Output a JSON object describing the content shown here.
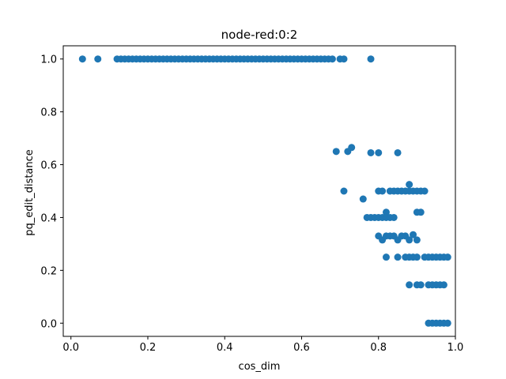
{
  "chart_data": {
    "type": "scatter",
    "title": "node-red:0:2",
    "xlabel": "cos_dim",
    "ylabel": "pq_edit_distance",
    "xlim": [
      -0.02,
      1.0
    ],
    "ylim": [
      -0.05,
      1.05
    ],
    "xticks": [
      0.0,
      0.2,
      0.4,
      0.6,
      0.8,
      1.0
    ],
    "xtick_labels": [
      "0.0",
      "0.2",
      "0.4",
      "0.6",
      "0.8",
      "1.0"
    ],
    "yticks": [
      0.0,
      0.2,
      0.4,
      0.6,
      0.8,
      1.0
    ],
    "ytick_labels": [
      "0.0",
      "0.2",
      "0.4",
      "0.6",
      "0.8",
      "1.0"
    ],
    "grid": false,
    "marker_color": "#1f77b4",
    "points": [
      [
        0.03,
        1.0
      ],
      [
        0.07,
        1.0
      ],
      [
        0.12,
        1.0
      ],
      [
        0.13,
        1.0
      ],
      [
        0.14,
        1.0
      ],
      [
        0.15,
        1.0
      ],
      [
        0.16,
        1.0
      ],
      [
        0.17,
        1.0
      ],
      [
        0.18,
        1.0
      ],
      [
        0.19,
        1.0
      ],
      [
        0.2,
        1.0
      ],
      [
        0.21,
        1.0
      ],
      [
        0.22,
        1.0
      ],
      [
        0.23,
        1.0
      ],
      [
        0.24,
        1.0
      ],
      [
        0.25,
        1.0
      ],
      [
        0.26,
        1.0
      ],
      [
        0.27,
        1.0
      ],
      [
        0.28,
        1.0
      ],
      [
        0.29,
        1.0
      ],
      [
        0.3,
        1.0
      ],
      [
        0.31,
        1.0
      ],
      [
        0.32,
        1.0
      ],
      [
        0.33,
        1.0
      ],
      [
        0.34,
        1.0
      ],
      [
        0.35,
        1.0
      ],
      [
        0.36,
        1.0
      ],
      [
        0.37,
        1.0
      ],
      [
        0.38,
        1.0
      ],
      [
        0.39,
        1.0
      ],
      [
        0.4,
        1.0
      ],
      [
        0.41,
        1.0
      ],
      [
        0.42,
        1.0
      ],
      [
        0.43,
        1.0
      ],
      [
        0.44,
        1.0
      ],
      [
        0.45,
        1.0
      ],
      [
        0.46,
        1.0
      ],
      [
        0.47,
        1.0
      ],
      [
        0.48,
        1.0
      ],
      [
        0.49,
        1.0
      ],
      [
        0.5,
        1.0
      ],
      [
        0.51,
        1.0
      ],
      [
        0.52,
        1.0
      ],
      [
        0.53,
        1.0
      ],
      [
        0.54,
        1.0
      ],
      [
        0.55,
        1.0
      ],
      [
        0.56,
        1.0
      ],
      [
        0.57,
        1.0
      ],
      [
        0.58,
        1.0
      ],
      [
        0.59,
        1.0
      ],
      [
        0.6,
        1.0
      ],
      [
        0.61,
        1.0
      ],
      [
        0.62,
        1.0
      ],
      [
        0.63,
        1.0
      ],
      [
        0.64,
        1.0
      ],
      [
        0.65,
        1.0
      ],
      [
        0.66,
        1.0
      ],
      [
        0.67,
        1.0
      ],
      [
        0.68,
        1.0
      ],
      [
        0.7,
        1.0
      ],
      [
        0.71,
        1.0
      ],
      [
        0.78,
        1.0
      ],
      [
        0.69,
        0.65
      ],
      [
        0.72,
        0.65
      ],
      [
        0.73,
        0.665
      ],
      [
        0.78,
        0.645
      ],
      [
        0.8,
        0.645
      ],
      [
        0.85,
        0.645
      ],
      [
        0.71,
        0.5
      ],
      [
        0.8,
        0.5
      ],
      [
        0.81,
        0.5
      ],
      [
        0.83,
        0.5
      ],
      [
        0.84,
        0.5
      ],
      [
        0.85,
        0.5
      ],
      [
        0.86,
        0.5
      ],
      [
        0.87,
        0.5
      ],
      [
        0.88,
        0.5
      ],
      [
        0.89,
        0.5
      ],
      [
        0.9,
        0.5
      ],
      [
        0.91,
        0.5
      ],
      [
        0.92,
        0.5
      ],
      [
        0.88,
        0.525
      ],
      [
        0.76,
        0.47
      ],
      [
        0.82,
        0.42
      ],
      [
        0.9,
        0.42
      ],
      [
        0.91,
        0.42
      ],
      [
        0.77,
        0.4
      ],
      [
        0.78,
        0.4
      ],
      [
        0.79,
        0.4
      ],
      [
        0.8,
        0.4
      ],
      [
        0.81,
        0.4
      ],
      [
        0.82,
        0.4
      ],
      [
        0.83,
        0.4
      ],
      [
        0.84,
        0.4
      ],
      [
        0.8,
        0.33
      ],
      [
        0.81,
        0.315
      ],
      [
        0.82,
        0.33
      ],
      [
        0.83,
        0.33
      ],
      [
        0.84,
        0.33
      ],
      [
        0.85,
        0.315
      ],
      [
        0.86,
        0.33
      ],
      [
        0.87,
        0.33
      ],
      [
        0.88,
        0.315
      ],
      [
        0.89,
        0.335
      ],
      [
        0.9,
        0.315
      ],
      [
        0.82,
        0.25
      ],
      [
        0.85,
        0.25
      ],
      [
        0.87,
        0.25
      ],
      [
        0.88,
        0.25
      ],
      [
        0.89,
        0.25
      ],
      [
        0.9,
        0.25
      ],
      [
        0.92,
        0.25
      ],
      [
        0.93,
        0.25
      ],
      [
        0.94,
        0.25
      ],
      [
        0.95,
        0.25
      ],
      [
        0.96,
        0.25
      ],
      [
        0.97,
        0.25
      ],
      [
        0.98,
        0.25
      ],
      [
        0.88,
        0.145
      ],
      [
        0.9,
        0.145
      ],
      [
        0.91,
        0.145
      ],
      [
        0.93,
        0.145
      ],
      [
        0.94,
        0.145
      ],
      [
        0.95,
        0.145
      ],
      [
        0.96,
        0.145
      ],
      [
        0.97,
        0.145
      ],
      [
        0.93,
        0.0
      ],
      [
        0.94,
        0.0
      ],
      [
        0.95,
        0.0
      ],
      [
        0.96,
        0.0
      ],
      [
        0.97,
        0.0
      ],
      [
        0.98,
        0.0
      ]
    ]
  }
}
